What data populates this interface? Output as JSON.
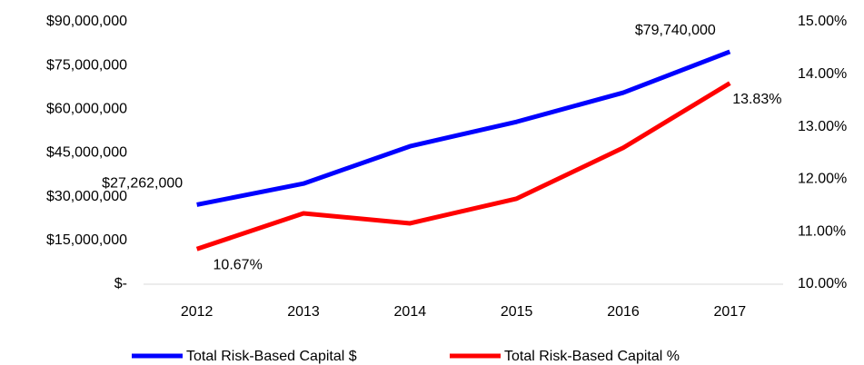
{
  "chart_data": {
    "type": "line",
    "categories": [
      "2012",
      "2013",
      "2014",
      "2015",
      "2016",
      "2017"
    ],
    "series": [
      {
        "name": "Total Risk-Based Capital $",
        "color": "#0000ff",
        "axis": "y",
        "values": [
          27262000,
          34500000,
          47300000,
          55700000,
          65700000,
          79740000
        ],
        "value_labels": [
          "$27,262,000",
          null,
          null,
          null,
          null,
          "$79,740,000"
        ]
      },
      {
        "name": "Total Risk-Based Capital %",
        "color": "#ff0000",
        "axis": "y2",
        "values": [
          10.67,
          11.35,
          11.16,
          11.63,
          12.6,
          13.83
        ],
        "value_labels": [
          "10.67%",
          null,
          null,
          null,
          null,
          "13.83%"
        ]
      }
    ],
    "ylim": [
      0,
      90000000
    ],
    "yticks": [
      {
        "value": 0,
        "label": "$-"
      },
      {
        "value": 15000000,
        "label": "$15,000,000"
      },
      {
        "value": 30000000,
        "label": "$30,000,000"
      },
      {
        "value": 45000000,
        "label": "$45,000,000"
      },
      {
        "value": 60000000,
        "label": "$60,000,000"
      },
      {
        "value": 75000000,
        "label": "$75,000,000"
      },
      {
        "value": 90000000,
        "label": "$90,000,000"
      }
    ],
    "y2lim": [
      10,
      15
    ],
    "y2ticks": [
      {
        "value": 10,
        "label": "10.00%"
      },
      {
        "value": 11,
        "label": "11.00%"
      },
      {
        "value": 12,
        "label": "12.00%"
      },
      {
        "value": 13,
        "label": "13.00%"
      },
      {
        "value": 14,
        "label": "14.00%"
      },
      {
        "value": 15,
        "label": "15.00%"
      }
    ],
    "grid": false,
    "legend": "bottom"
  }
}
